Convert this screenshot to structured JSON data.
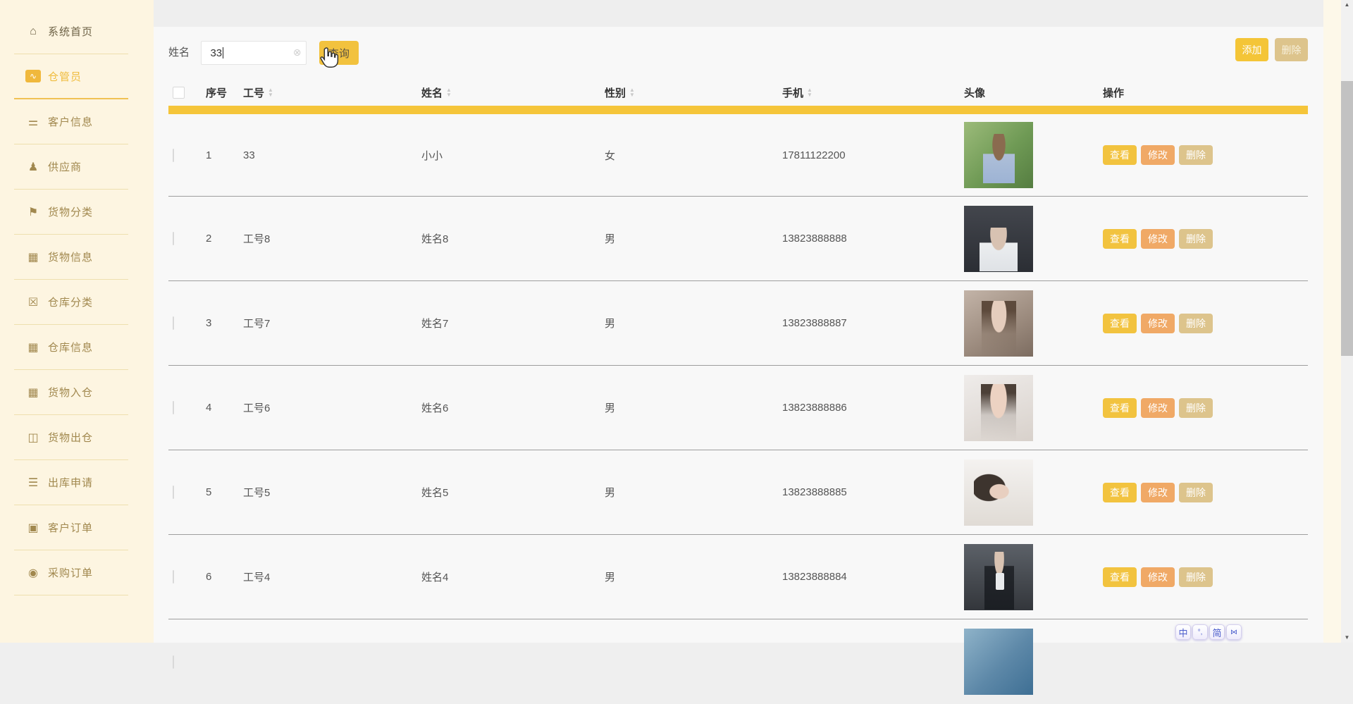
{
  "sidebar": {
    "items": [
      {
        "key": "home",
        "label": "系统首页",
        "icon": "home-icon",
        "active": false
      },
      {
        "key": "warehouse-keeper",
        "label": "仓管员",
        "icon": "chart-icon",
        "active": true
      },
      {
        "key": "customer-info",
        "label": "客户信息",
        "icon": "sliders-icon",
        "active": false
      },
      {
        "key": "supplier",
        "label": "供应商",
        "icon": "user-icon",
        "active": false
      },
      {
        "key": "goods-category",
        "label": "货物分类",
        "icon": "flag-icon",
        "active": false
      },
      {
        "key": "goods-info",
        "label": "货物信息",
        "icon": "grid-icon",
        "active": false
      },
      {
        "key": "warehouse-category",
        "label": "仓库分类",
        "icon": "clipboard-x-icon",
        "active": false
      },
      {
        "key": "warehouse-info",
        "label": "仓库信息",
        "icon": "grid-icon",
        "active": false
      },
      {
        "key": "goods-inbound",
        "label": "货物入仓",
        "icon": "grid-icon",
        "active": false
      },
      {
        "key": "goods-outbound",
        "label": "货物出仓",
        "icon": "book-icon",
        "active": false
      },
      {
        "key": "outbound-request",
        "label": "出库申请",
        "icon": "list-icon",
        "active": false
      },
      {
        "key": "customer-orders",
        "label": "客户订单",
        "icon": "monitor-icon",
        "active": false
      },
      {
        "key": "purchase-orders",
        "label": "采购订单",
        "icon": "bulb-icon",
        "active": false
      }
    ]
  },
  "toolbar": {
    "search_label": "姓名",
    "search_value": "33",
    "clear_icon": "clear-circle-icon",
    "query_label": "查询",
    "add_label": "添加",
    "delete_label": "删除"
  },
  "table": {
    "headers": [
      {
        "label": "序号",
        "sortable": false
      },
      {
        "label": "工号",
        "sortable": true
      },
      {
        "label": "姓名",
        "sortable": true
      },
      {
        "label": "性别",
        "sortable": true
      },
      {
        "label": "手机",
        "sortable": true
      },
      {
        "label": "头像",
        "sortable": false
      },
      {
        "label": "操作",
        "sortable": false
      }
    ],
    "action_labels": [
      "查看",
      "修改",
      "删除"
    ],
    "rows": [
      {
        "no": "1",
        "id": "33",
        "name": "小小",
        "gender": "女",
        "phone": "17811122200"
      },
      {
        "no": "2",
        "id": "工号8",
        "name": "姓名8",
        "gender": "男",
        "phone": "13823888888"
      },
      {
        "no": "3",
        "id": "工号7",
        "name": "姓名7",
        "gender": "男",
        "phone": "13823888887"
      },
      {
        "no": "4",
        "id": "工号6",
        "name": "姓名6",
        "gender": "男",
        "phone": "13823888886"
      },
      {
        "no": "5",
        "id": "工号5",
        "name": "姓名5",
        "gender": "男",
        "phone": "13823888885"
      },
      {
        "no": "6",
        "id": "工号4",
        "name": "姓名4",
        "gender": "男",
        "phone": "13823888884"
      },
      {
        "no": "",
        "id": "",
        "name": "",
        "gender": "",
        "phone": "",
        "partial": true
      }
    ]
  },
  "ime_bar": {
    "buttons": [
      {
        "key": "chinese",
        "label": "中"
      },
      {
        "key": "punctuation",
        "label": "°,"
      },
      {
        "key": "simplified",
        "label": "简"
      },
      {
        "key": "skin",
        "label": "⋈",
        "icon": "skin-icon"
      }
    ]
  },
  "colors": {
    "accent_yellow": "#f5c53a",
    "button_orange": "#f0a966",
    "button_tan": "#ddc48c",
    "sidebar_bg": "#fdf5e1",
    "sidebar_text": "#a1884e",
    "sidebar_active_text": "#efbc3e"
  }
}
